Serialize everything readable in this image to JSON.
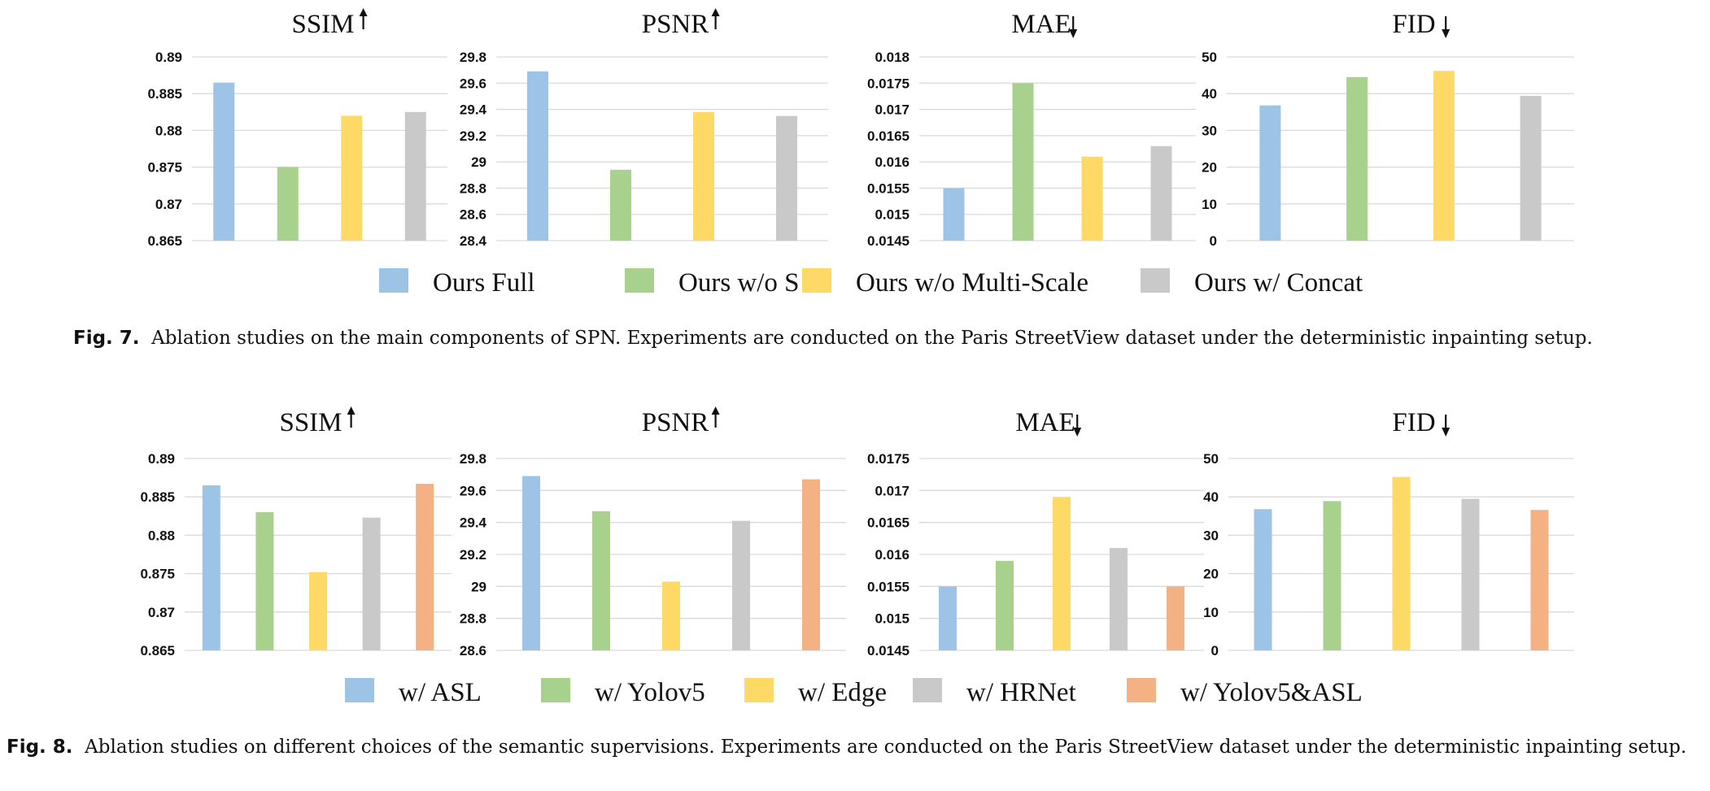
{
  "colors": {
    "blue": "#9dc3e6",
    "green": "#a9d18e",
    "yellow": "#ffd966",
    "gray": "#c9c9c9",
    "orange": "#f4b183",
    "grid": "#d9d9d9"
  },
  "figures": [
    {
      "id": "fig7",
      "legend": [
        "Ours Full",
        "Ours w/o S",
        "Ours w/o Multi-Scale",
        "Ours w/ Concat"
      ],
      "caption": {
        "label": "Fig. 7.",
        "text": "Ablation studies on the main components of SPN. Experiments are conducted on the Paris StreetView dataset under the deterministic inpainting setup."
      }
    },
    {
      "id": "fig8",
      "legend": [
        "w/ ASL",
        "w/ Yolov5",
        "w/ Edge",
        "w/ HRNet",
        "w/ Yolov5&ASL"
      ],
      "caption": {
        "label": "Fig. 8.",
        "text": "Ablation studies on different choices of the semantic supervisions. Experiments are conducted on the Paris StreetView dataset under the deterministic inpainting setup."
      }
    }
  ],
  "chart_data": [
    {
      "type": "bar",
      "figure": "Fig. 7",
      "title": "SSIM",
      "arrow": "up",
      "series_colors": [
        "blue",
        "green",
        "yellow",
        "gray"
      ],
      "values": [
        0.8865,
        0.875,
        0.882,
        0.8825
      ],
      "ylim": [
        0.865,
        0.89
      ],
      "ticks": [
        "0.865",
        "0.87",
        "0.875",
        "0.88",
        "0.885",
        "0.89"
      ],
      "grid": true
    },
    {
      "type": "bar",
      "figure": "Fig. 7",
      "title": "PSNR",
      "arrow": "up",
      "series_colors": [
        "blue",
        "green",
        "yellow",
        "gray"
      ],
      "values": [
        29.69,
        28.94,
        29.38,
        29.35
      ],
      "ylim": [
        28.4,
        29.8
      ],
      "ticks": [
        "28.4",
        "28.6",
        "28.8",
        "29",
        "29.2",
        "29.4",
        "29.6",
        "29.8"
      ],
      "grid": true
    },
    {
      "type": "bar",
      "figure": "Fig. 7",
      "title": "MAE",
      "arrow": "down",
      "series_colors": [
        "blue",
        "green",
        "yellow",
        "gray"
      ],
      "values": [
        0.0155,
        0.0175,
        0.0161,
        0.0163
      ],
      "ylim": [
        0.0145,
        0.018
      ],
      "ticks": [
        "0.0145",
        "0.015",
        "0.0155",
        "0.016",
        "0.0165",
        "0.017",
        "0.0175",
        "0.018"
      ],
      "grid": true
    },
    {
      "type": "bar",
      "figure": "Fig. 7",
      "title": "FID",
      "arrow": "down",
      "series_colors": [
        "blue",
        "green",
        "yellow",
        "gray"
      ],
      "values": [
        36.8,
        44.5,
        46.2,
        39.4
      ],
      "ylim": [
        0,
        50
      ],
      "ticks": [
        "0",
        "10",
        "20",
        "30",
        "40",
        "50"
      ],
      "grid": true
    },
    {
      "type": "bar",
      "figure": "Fig. 8",
      "title": "SSIM",
      "arrow": "up",
      "series_colors": [
        "blue",
        "green",
        "yellow",
        "gray",
        "orange"
      ],
      "values": [
        0.8865,
        0.883,
        0.8752,
        0.8823,
        0.8867
      ],
      "ylim": [
        0.865,
        0.89
      ],
      "ticks": [
        "0.865",
        "0.87",
        "0.875",
        "0.88",
        "0.885",
        "0.89"
      ],
      "grid": true
    },
    {
      "type": "bar",
      "figure": "Fig. 8",
      "title": "PSNR",
      "arrow": "up",
      "series_colors": [
        "blue",
        "green",
        "yellow",
        "gray",
        "orange"
      ],
      "values": [
        29.69,
        29.47,
        29.03,
        29.41,
        29.67
      ],
      "ylim": [
        28.6,
        29.8
      ],
      "ticks": [
        "28.6",
        "28.8",
        "29",
        "29.2",
        "29.4",
        "29.6",
        "29.8"
      ],
      "grid": true
    },
    {
      "type": "bar",
      "figure": "Fig. 8",
      "title": "MAE",
      "arrow": "down",
      "series_colors": [
        "blue",
        "green",
        "yellow",
        "gray",
        "orange"
      ],
      "values": [
        0.0155,
        0.0159,
        0.0169,
        0.0161,
        0.0155
      ],
      "ylim": [
        0.0145,
        0.0175
      ],
      "ticks": [
        "0.0145",
        "0.015",
        "0.0155",
        "0.016",
        "0.0165",
        "0.017",
        "0.0175"
      ],
      "grid": true
    },
    {
      "type": "bar",
      "figure": "Fig. 8",
      "title": "FID",
      "arrow": "down",
      "series_colors": [
        "blue",
        "green",
        "yellow",
        "gray",
        "orange"
      ],
      "values": [
        36.8,
        38.9,
        45.2,
        39.5,
        36.6
      ],
      "ylim": [
        0,
        50
      ],
      "ticks": [
        "0",
        "10",
        "20",
        "30",
        "40",
        "50"
      ],
      "grid": true
    }
  ]
}
